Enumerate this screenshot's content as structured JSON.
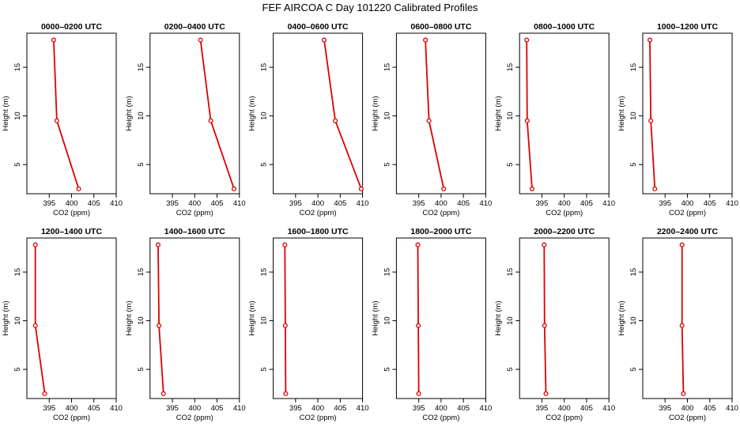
{
  "figure": {
    "title": "FEF AIRCOA C  Day 101220  Calibrated Profiles",
    "series_color": "#dd0000"
  },
  "chart_data": [
    {
      "type": "line",
      "title": "0000–0200 UTC",
      "xlabel": "CO2 (ppm)",
      "ylabel": "Height (m)",
      "xlim": [
        390,
        410
      ],
      "ylim": [
        2,
        18.5
      ],
      "x_ticks": [
        395,
        400,
        405,
        410
      ],
      "y_ticks": [
        5,
        10,
        15
      ],
      "heights": [
        2.5,
        9.5,
        17.8
      ],
      "co2": [
        401.6,
        396.7,
        396.0
      ]
    },
    {
      "type": "line",
      "title": "0200–0400 UTC",
      "xlabel": "CO2 (ppm)",
      "ylabel": "Height (m)",
      "xlim": [
        390,
        410
      ],
      "ylim": [
        2,
        18.5
      ],
      "x_ticks": [
        395,
        400,
        405,
        410
      ],
      "y_ticks": [
        5,
        10,
        15
      ],
      "heights": [
        2.5,
        9.5,
        17.8
      ],
      "co2": [
        408.8,
        403.6,
        401.3
      ]
    },
    {
      "type": "line",
      "title": "0400–0600 UTC",
      "xlabel": "CO2 (ppm)",
      "ylabel": "Height (m)",
      "xlim": [
        390,
        410
      ],
      "ylim": [
        2,
        18.5
      ],
      "x_ticks": [
        395,
        400,
        405,
        410
      ],
      "y_ticks": [
        5,
        10,
        15
      ],
      "heights": [
        2.5,
        9.5,
        17.8
      ],
      "co2": [
        409.7,
        403.9,
        401.4
      ]
    },
    {
      "type": "line",
      "title": "0600–0800 UTC",
      "xlabel": "CO2 (ppm)",
      "ylabel": "Height (m)",
      "xlim": [
        390,
        410
      ],
      "ylim": [
        2,
        18.5
      ],
      "x_ticks": [
        395,
        400,
        405,
        410
      ],
      "y_ticks": [
        5,
        10,
        15
      ],
      "heights": [
        2.5,
        9.5,
        17.8
      ],
      "co2": [
        400.6,
        397.3,
        396.5
      ]
    },
    {
      "type": "line",
      "title": "0800–1000 UTC",
      "xlabel": "CO2 (ppm)",
      "ylabel": "Height (m)",
      "xlim": [
        390,
        410
      ],
      "ylim": [
        2,
        18.5
      ],
      "x_ticks": [
        395,
        400,
        405,
        410
      ],
      "y_ticks": [
        5,
        10,
        15
      ],
      "heights": [
        2.5,
        9.5,
        17.8
      ],
      "co2": [
        392.8,
        391.7,
        391.6
      ]
    },
    {
      "type": "line",
      "title": "1000–1200 UTC",
      "xlabel": "CO2 (ppm)",
      "ylabel": "Height (m)",
      "xlim": [
        390,
        410
      ],
      "ylim": [
        2,
        18.5
      ],
      "x_ticks": [
        395,
        400,
        405,
        410
      ],
      "y_ticks": [
        5,
        10,
        15
      ],
      "heights": [
        2.5,
        9.5,
        17.8
      ],
      "co2": [
        392.7,
        391.8,
        391.6
      ]
    },
    {
      "type": "line",
      "title": "1200–1400 UTC",
      "xlabel": "CO2 (ppm)",
      "ylabel": "Height (m)",
      "xlim": [
        390,
        410
      ],
      "ylim": [
        2,
        18.5
      ],
      "x_ticks": [
        395,
        400,
        405,
        410
      ],
      "y_ticks": [
        5,
        10,
        15
      ],
      "heights": [
        2.5,
        9.5,
        17.8
      ],
      "co2": [
        394.0,
        391.9,
        391.9
      ]
    },
    {
      "type": "line",
      "title": "1400–1600 UTC",
      "xlabel": "CO2 (ppm)",
      "ylabel": "Height (m)",
      "xlim": [
        390,
        410
      ],
      "ylim": [
        2,
        18.5
      ],
      "x_ticks": [
        395,
        400,
        405,
        410
      ],
      "y_ticks": [
        5,
        10,
        15
      ],
      "heights": [
        2.5,
        9.5,
        17.8
      ],
      "co2": [
        393.0,
        392.0,
        391.8
      ]
    },
    {
      "type": "line",
      "title": "1600–1800 UTC",
      "xlabel": "CO2 (ppm)",
      "ylabel": "Height (m)",
      "xlim": [
        390,
        410
      ],
      "ylim": [
        2,
        18.5
      ],
      "x_ticks": [
        395,
        400,
        405,
        410
      ],
      "y_ticks": [
        5,
        10,
        15
      ],
      "heights": [
        2.5,
        9.5,
        17.8
      ],
      "co2": [
        392.8,
        392.7,
        392.6
      ]
    },
    {
      "type": "line",
      "title": "1800–2000 UTC",
      "xlabel": "CO2 (ppm)",
      "ylabel": "Height (m)",
      "xlim": [
        390,
        410
      ],
      "ylim": [
        2,
        18.5
      ],
      "x_ticks": [
        395,
        400,
        405,
        410
      ],
      "y_ticks": [
        5,
        10,
        15
      ],
      "heights": [
        2.5,
        9.5,
        17.8
      ],
      "co2": [
        395.0,
        394.9,
        394.8
      ]
    },
    {
      "type": "line",
      "title": "2000–2200 UTC",
      "xlabel": "CO2 (ppm)",
      "ylabel": "Height (m)",
      "xlim": [
        390,
        410
      ],
      "ylim": [
        2,
        18.5
      ],
      "x_ticks": [
        395,
        400,
        405,
        410
      ],
      "y_ticks": [
        5,
        10,
        15
      ],
      "heights": [
        2.5,
        9.5,
        17.8
      ],
      "co2": [
        395.9,
        395.6,
        395.5
      ]
    },
    {
      "type": "line",
      "title": "2200–2400 UTC",
      "xlabel": "CO2 (ppm)",
      "ylabel": "Height (m)",
      "xlim": [
        390,
        410
      ],
      "ylim": [
        2,
        18.5
      ],
      "x_ticks": [
        395,
        400,
        405,
        410
      ],
      "y_ticks": [
        5,
        10,
        15
      ],
      "heights": [
        2.5,
        9.5,
        17.8
      ],
      "co2": [
        399.1,
        398.8,
        398.8
      ]
    }
  ]
}
